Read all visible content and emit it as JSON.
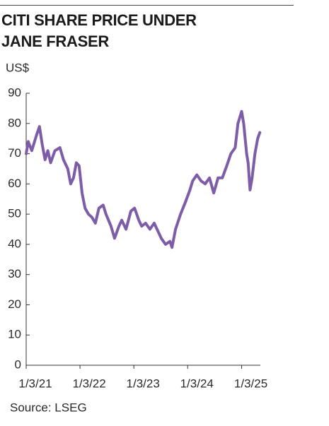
{
  "chart_data": {
    "type": "line",
    "title": "CITI SHARE PRICE UNDER JANE FRASER",
    "y_label": "US$",
    "source": "Source: LSEG",
    "xlim": [
      "2021-01-03",
      "2025-05-10"
    ],
    "xticks": [
      {
        "value": "2021-01-03",
        "label": "1/3/21"
      },
      {
        "value": "2022-01-03",
        "label": "1/3/22"
      },
      {
        "value": "2023-01-03",
        "label": "1/3/23"
      },
      {
        "value": "2024-01-03",
        "label": "1/3/24"
      },
      {
        "value": "2025-01-03",
        "label": "1/3/25"
      }
    ],
    "ylim": [
      0,
      90
    ],
    "yticks": [
      0,
      10,
      20,
      30,
      40,
      50,
      60,
      70,
      80,
      90
    ],
    "grid": false,
    "x": [
      "2021-01-03",
      "2021-01-17",
      "2021-02-10",
      "2021-03-13",
      "2021-04-03",
      "2021-04-22",
      "2021-05-11",
      "2021-05-30",
      "2021-06-18",
      "2021-07-17",
      "2021-08-20",
      "2021-09-13",
      "2021-10-12",
      "2021-11-01",
      "2021-11-20",
      "2021-12-09",
      "2021-12-28",
      "2022-01-17",
      "2022-02-06",
      "2022-03-01",
      "2022-03-24",
      "2022-04-17",
      "2022-05-11",
      "2022-06-09",
      "2022-06-28",
      "2022-08-01",
      "2022-08-25",
      "2022-09-24",
      "2022-10-13",
      "2022-11-11",
      "2022-12-14",
      "2023-01-08",
      "2023-02-06",
      "2023-02-25",
      "2023-03-24",
      "2023-04-22",
      "2023-05-21",
      "2023-06-19",
      "2023-07-08",
      "2023-08-06",
      "2023-09-05",
      "2023-09-19",
      "2023-10-13",
      "2023-11-16",
      "2023-12-19",
      "2024-01-18",
      "2024-02-06",
      "2024-03-05",
      "2024-04-03",
      "2024-05-01",
      "2024-05-30",
      "2024-06-28",
      "2024-07-27",
      "2024-08-25",
      "2024-09-24",
      "2024-10-22",
      "2024-11-20",
      "2024-12-09",
      "2025-01-03",
      "2025-01-17",
      "2025-02-06",
      "2025-02-16",
      "2025-03-01",
      "2025-03-15",
      "2025-04-03",
      "2025-04-22",
      "2025-05-06"
    ],
    "series": [
      {
        "name": "Citi",
        "color": "#7d5ca8",
        "values": [
          70,
          74,
          71,
          76,
          79,
          73,
          68,
          71,
          67,
          71,
          72,
          68,
          65,
          60,
          62,
          67,
          66,
          57,
          52,
          50,
          49,
          47,
          52,
          53,
          50,
          46,
          42,
          46,
          48,
          45,
          51,
          52,
          48,
          46,
          47,
          45,
          47,
          44,
          42,
          40,
          41,
          39,
          45,
          50,
          54,
          58,
          61,
          63,
          61,
          60,
          62,
          57,
          62,
          62,
          66,
          70,
          72,
          80,
          84,
          80,
          70,
          67,
          58,
          62,
          70,
          75,
          77
        ]
      }
    ]
  }
}
